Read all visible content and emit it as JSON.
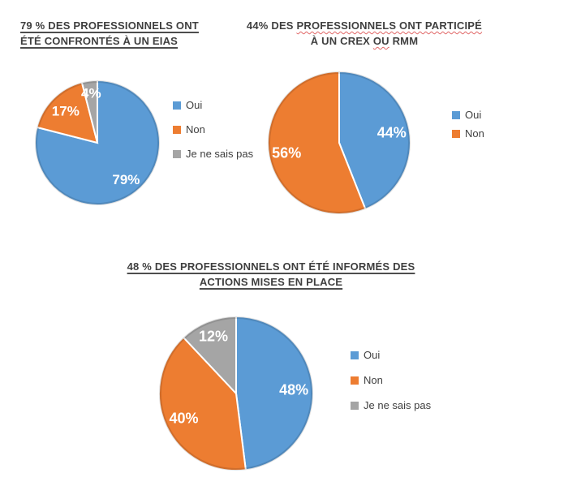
{
  "page": {
    "background": "#ffffff",
    "title_text_color": "#3f3f3f",
    "legend_text_color": "#404040",
    "data_label_color": "#ffffff",
    "spellcheck_underline_color": "#e06666"
  },
  "chart_data": [
    {
      "type": "pie",
      "title": "79 % DES PROFESSIONNELS ONT ÉTÉ CONFRONTÉS À UN EIAS",
      "title_lines": [
        [
          {
            "text": "79 % DES PROFESSIONNELS ONT"
          }
        ],
        [
          {
            "text": "ÉTÉ CONFRONTÉS À UN EIAS"
          }
        ]
      ],
      "title_underline": true,
      "categories": [
        "Oui",
        "Non",
        "Je ne sais pas"
      ],
      "values": [
        79,
        17,
        4
      ],
      "data_labels": [
        "79%",
        "17%",
        "4%"
      ],
      "colors": [
        "#5b9bd5",
        "#ed7d31",
        "#a5a5a5"
      ],
      "legend_position": "right",
      "start_angle_deg": 0,
      "direction": "clockwise"
    },
    {
      "type": "pie",
      "title": "44% DES PROFESSIONNELS ONT PARTICIPÉ À UN CREX OU RMM",
      "title_lines": [
        [
          {
            "text": "44% DES "
          },
          {
            "text": "PROFESSIONNELS ONT PARTICIPÉ",
            "spellcheck": true
          }
        ],
        [
          {
            "text": "À UN CREX "
          },
          {
            "text": "OU",
            "spellcheck": true
          },
          {
            "text": " RMM"
          }
        ]
      ],
      "title_underline": false,
      "categories": [
        "Oui",
        "Non"
      ],
      "values": [
        44,
        56
      ],
      "data_labels": [
        "44%",
        "56%"
      ],
      "colors": [
        "#5b9bd5",
        "#ed7d31"
      ],
      "legend_position": "right",
      "start_angle_deg": 0,
      "direction": "clockwise"
    },
    {
      "type": "pie",
      "title": "48 % DES PROFESSIONNELS ONT ÉTÉ INFORMÉS DES ACTIONS MISES EN PLACE",
      "title_lines": [
        [
          {
            "text": "48 % DES PROFESSIONNELS ONT ÉTÉ INFORMÉS DES"
          }
        ],
        [
          {
            "text": "ACTIONS MISES EN PLACE"
          }
        ]
      ],
      "title_underline": true,
      "categories": [
        "Oui",
        "Non",
        "Je ne sais pas"
      ],
      "values": [
        48,
        40,
        12
      ],
      "data_labels": [
        "48%",
        "40%",
        "12%"
      ],
      "colors": [
        "#5b9bd5",
        "#ed7d31",
        "#a5a5a5"
      ],
      "legend_position": "right",
      "start_angle_deg": 0,
      "direction": "clockwise"
    }
  ]
}
